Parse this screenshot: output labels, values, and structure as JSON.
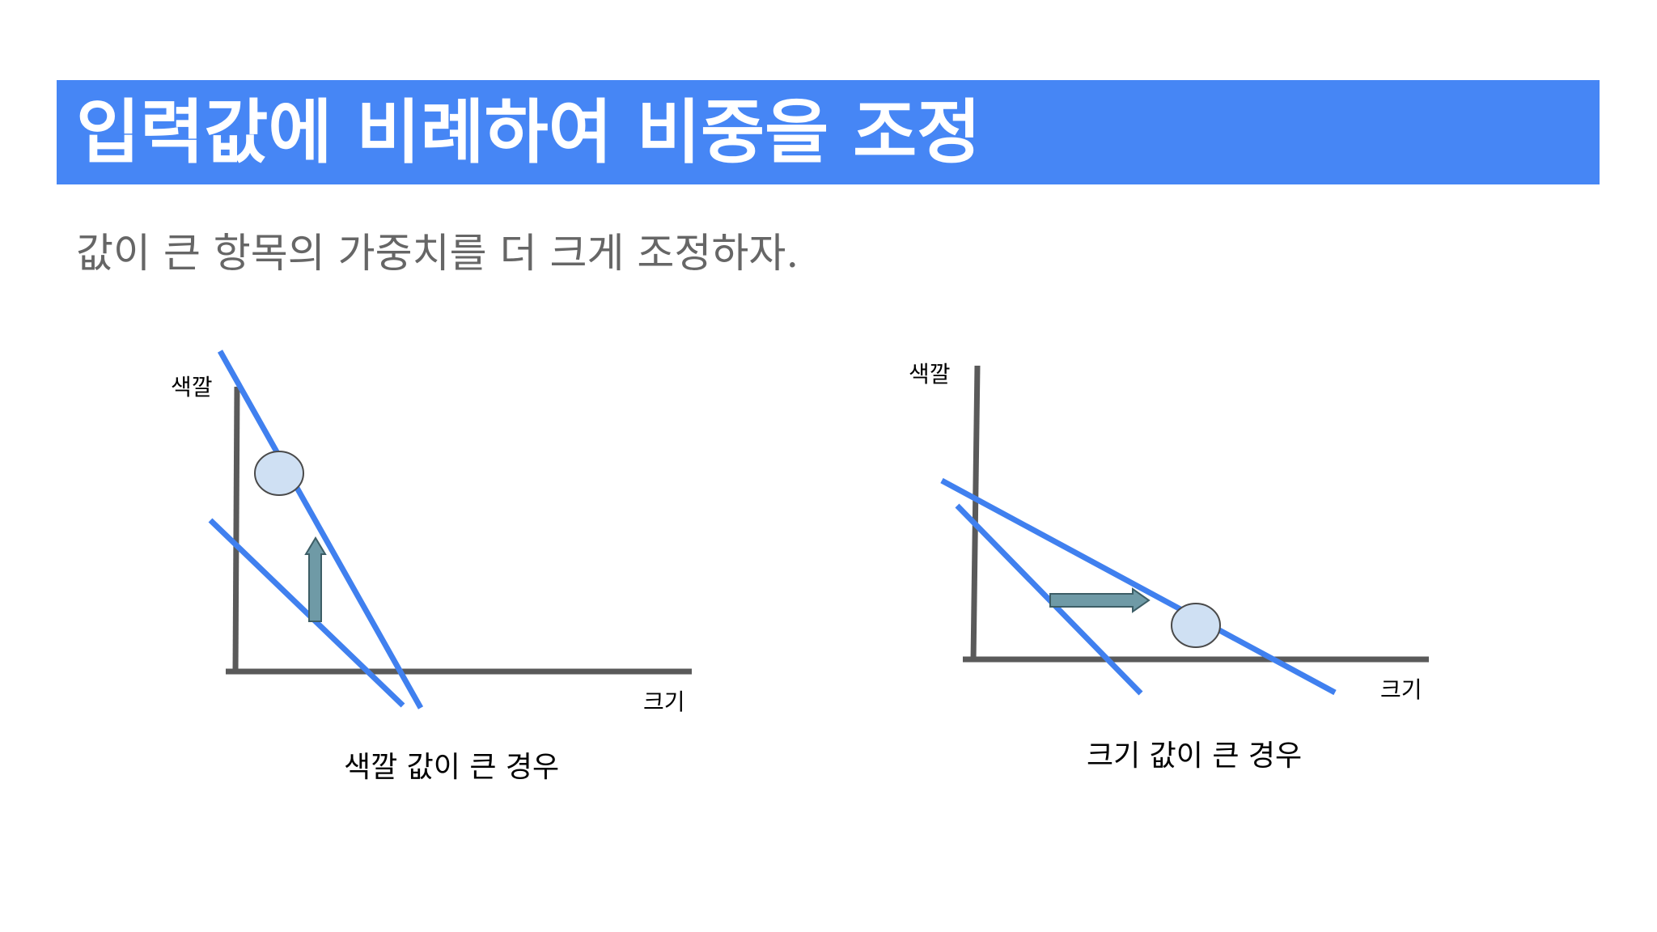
{
  "title": "입력값에 비례하여 비중을 조정",
  "subtitle": "값이 큰 항목의 가중치를 더 크게 조정하자.",
  "diagrams": [
    {
      "y_axis_label": "색깔",
      "x_axis_label": "크기",
      "caption": "색깔 값이 큰 경우",
      "arrow_direction": "up"
    },
    {
      "y_axis_label": "색깔",
      "x_axis_label": "크기",
      "caption": "크기 값이 큰 경우",
      "arrow_direction": "right"
    }
  ],
  "colors": {
    "title_bar": "#4686f5",
    "line": "#4080ef",
    "axis": "#5a5a5a",
    "point_fill": "#cfe0f3",
    "arrow_fill": "#6f9aa6"
  }
}
